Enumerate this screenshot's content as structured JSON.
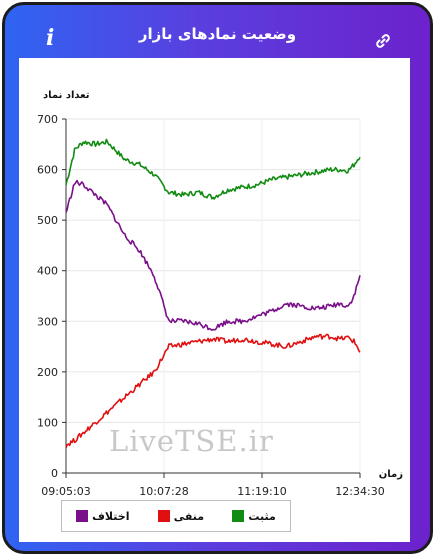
{
  "header": {
    "title": "وضعیت نمادهای بازار"
  },
  "watermark": "LiveTSE.ir",
  "chart_data": {
    "type": "line",
    "ylabel": "تعداد نماد",
    "xlabel": "زمان",
    "ylim": [
      0,
      700
    ],
    "yticks": [
      0,
      100,
      200,
      300,
      400,
      500,
      600,
      700
    ],
    "xticks": [
      "09:05:03",
      "10:07:28",
      "11:19:10",
      "12:34:30"
    ],
    "x": [
      0,
      0.03,
      0.06,
      0.1,
      0.14,
      0.2,
      0.25,
      0.3,
      0.35,
      0.4,
      0.45,
      0.5,
      0.55,
      0.6,
      0.65,
      0.7,
      0.75,
      0.8,
      0.85,
      0.9,
      0.93,
      0.96,
      0.98,
      1.0
    ],
    "series": [
      {
        "name": "مثبت",
        "color": "#118b11",
        "values": [
          570,
          640,
          655,
          650,
          655,
          620,
          610,
          590,
          555,
          550,
          555,
          545,
          560,
          565,
          570,
          580,
          585,
          590,
          595,
          600,
          600,
          598,
          610,
          628
        ]
      },
      {
        "name": "منفی",
        "color": "#e01010",
        "values": [
          55,
          65,
          80,
          100,
          120,
          150,
          175,
          200,
          250,
          255,
          260,
          265,
          260,
          265,
          260,
          255,
          250,
          260,
          270,
          270,
          265,
          268,
          260,
          240
        ]
      },
      {
        "name": "اختلاف",
        "color": "#7a0f8a",
        "values": [
          515,
          575,
          570,
          550,
          530,
          470,
          440,
          390,
          300,
          300,
          295,
          285,
          300,
          300,
          310,
          320,
          335,
          330,
          325,
          330,
          335,
          330,
          350,
          390
        ]
      }
    ]
  }
}
